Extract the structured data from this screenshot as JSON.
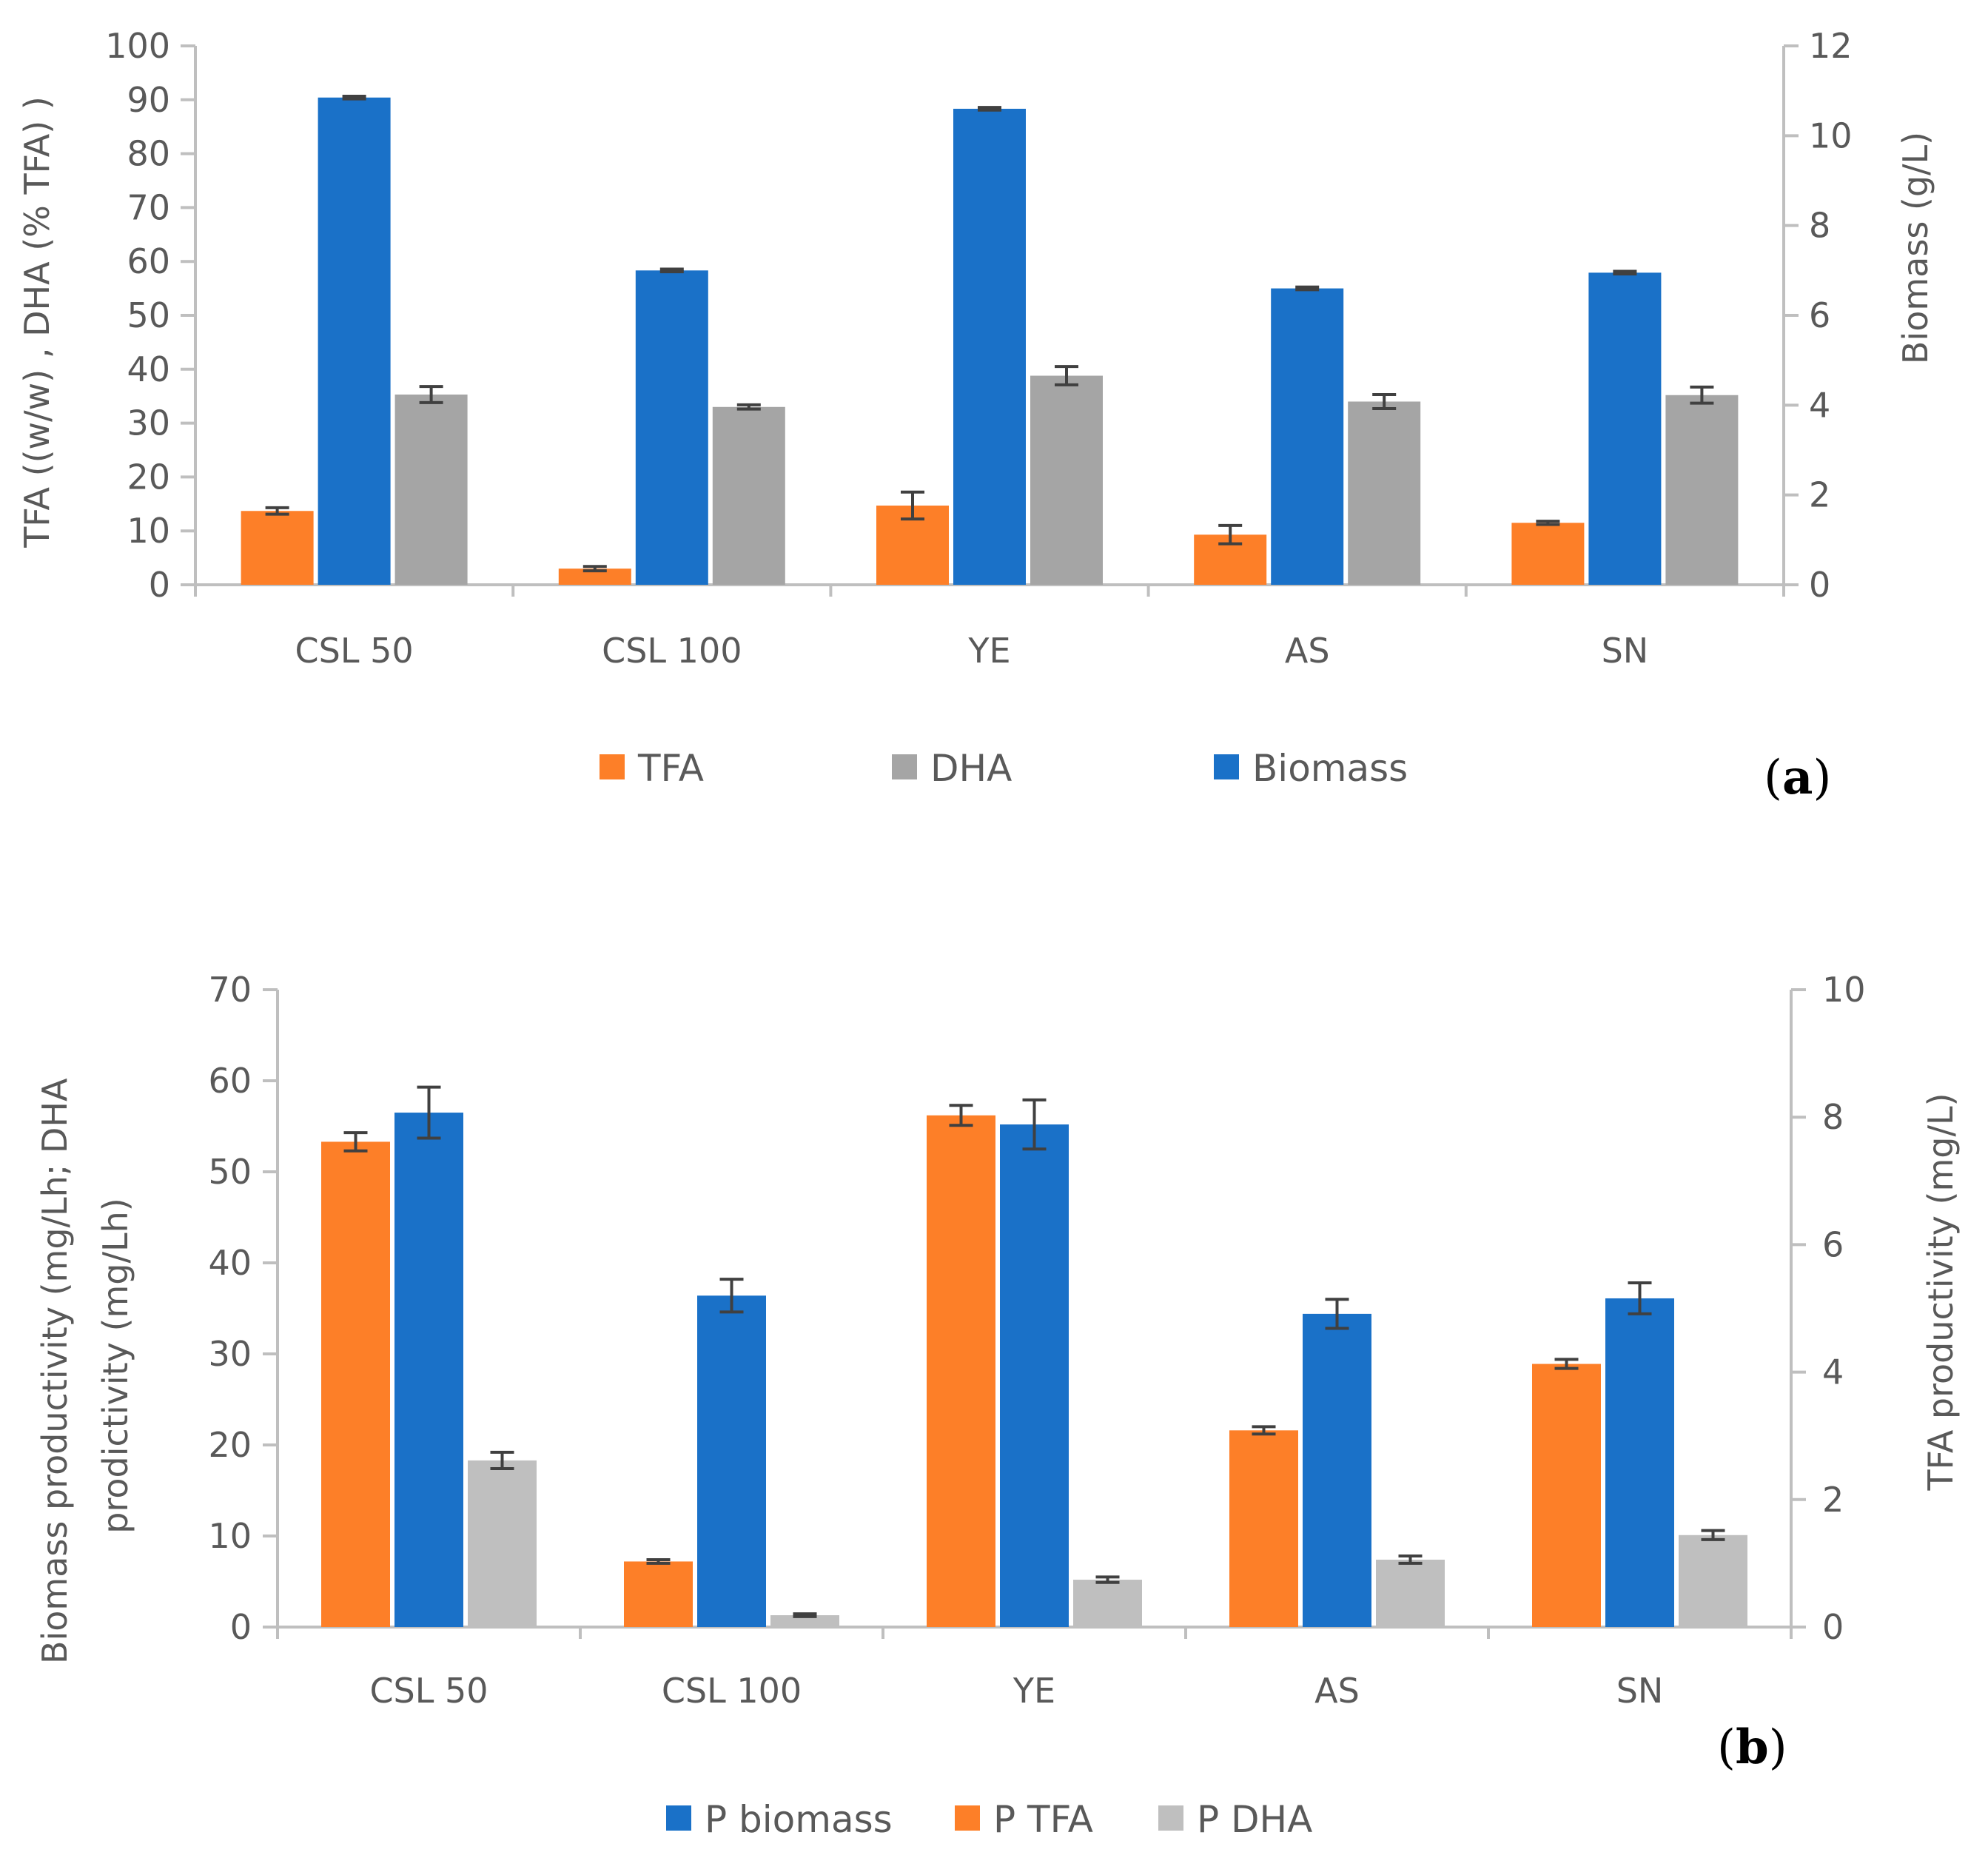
{
  "colors": {
    "orange": "#fd7f28",
    "blue": "#1a71c8",
    "gray_a": "#a5a5a5",
    "gray_b": "#bfbfbf",
    "axis": "#bfbfbf",
    "text": "#595959",
    "error_bar": "#404040"
  },
  "chart_data": [
    {
      "type": "bar",
      "panel_label": "a",
      "categories": [
        "CSL 50",
        "CSL 100",
        "YE",
        "AS",
        "SN"
      ],
      "ylabel": "TFA ((w/w) , DHA (% TFA) )",
      "y2label": "Biomass (g/L)",
      "ylim": [
        0,
        100
      ],
      "y2lim": [
        0,
        12
      ],
      "yticks": [
        0,
        10,
        20,
        30,
        40,
        50,
        60,
        70,
        80,
        90,
        100
      ],
      "y2ticks": [
        0,
        2,
        4,
        6,
        8,
        10,
        12
      ],
      "legend_position": "bottom",
      "legend": [
        {
          "label": "TFA",
          "color": "orange"
        },
        {
          "label": "DHA",
          "color": "gray_a"
        },
        {
          "label": "Biomass",
          "color": "blue"
        }
      ],
      "series": [
        {
          "name": "TFA",
          "axis": "left",
          "color": "orange",
          "values": [
            13.7,
            3.0,
            14.7,
            9.3,
            11.5
          ],
          "errors": [
            0.6,
            0.4,
            2.5,
            1.7,
            0.3
          ]
        },
        {
          "name": "Biomass",
          "axis": "right",
          "color": "blue",
          "values": [
            10.85,
            7.0,
            10.6,
            6.6,
            6.95
          ],
          "errors": [
            0.03,
            0.03,
            0.03,
            0.03,
            0.03
          ]
        },
        {
          "name": "DHA",
          "axis": "left",
          "color": "gray_a",
          "values": [
            35.3,
            33.0,
            38.8,
            34.0,
            35.2
          ],
          "errors": [
            1.5,
            0.4,
            1.7,
            1.3,
            1.5
          ]
        }
      ]
    },
    {
      "type": "bar",
      "panel_label": "b",
      "categories": [
        "CSL 50",
        "CSL 100",
        "YE",
        "AS",
        "SN"
      ],
      "ylabel": "Biomass productivity (mg/Lh; DHA prodictivity (mg/Lh)",
      "ylabel_lines": [
        "Biomass productivity (mg/Lh; DHA",
        "prodictivity (mg/Lh)"
      ],
      "y2label": "TFA  productivity (mg/L)",
      "ylim": [
        0,
        70
      ],
      "y2lim": [
        0,
        10
      ],
      "yticks": [
        0,
        10,
        20,
        30,
        40,
        50,
        60,
        70
      ],
      "y2ticks": [
        0,
        2,
        4,
        6,
        8,
        10
      ],
      "legend_position": "bottom",
      "legend": [
        {
          "label": "P biomass",
          "color": "blue"
        },
        {
          "label": "P TFA",
          "color": "orange"
        },
        {
          "label": "P DHA",
          "color": "gray_b"
        }
      ],
      "series": [
        {
          "name": "P TFA",
          "axis": "left",
          "color": "orange",
          "values": [
            53.3,
            7.2,
            56.2,
            21.6,
            28.9
          ],
          "errors": [
            1.0,
            0.2,
            1.1,
            0.4,
            0.5
          ]
        },
        {
          "name": "P biomass",
          "axis": "left",
          "color": "blue",
          "values": [
            56.5,
            36.4,
            55.2,
            34.4,
            36.1
          ],
          "errors": [
            2.8,
            1.8,
            2.7,
            1.6,
            1.7
          ]
        },
        {
          "name": "P DHA",
          "axis": "left",
          "color": "gray_b",
          "values": [
            18.3,
            1.3,
            5.2,
            7.4,
            10.1
          ],
          "errors": [
            0.9,
            0.15,
            0.3,
            0.4,
            0.5
          ]
        }
      ]
    }
  ]
}
